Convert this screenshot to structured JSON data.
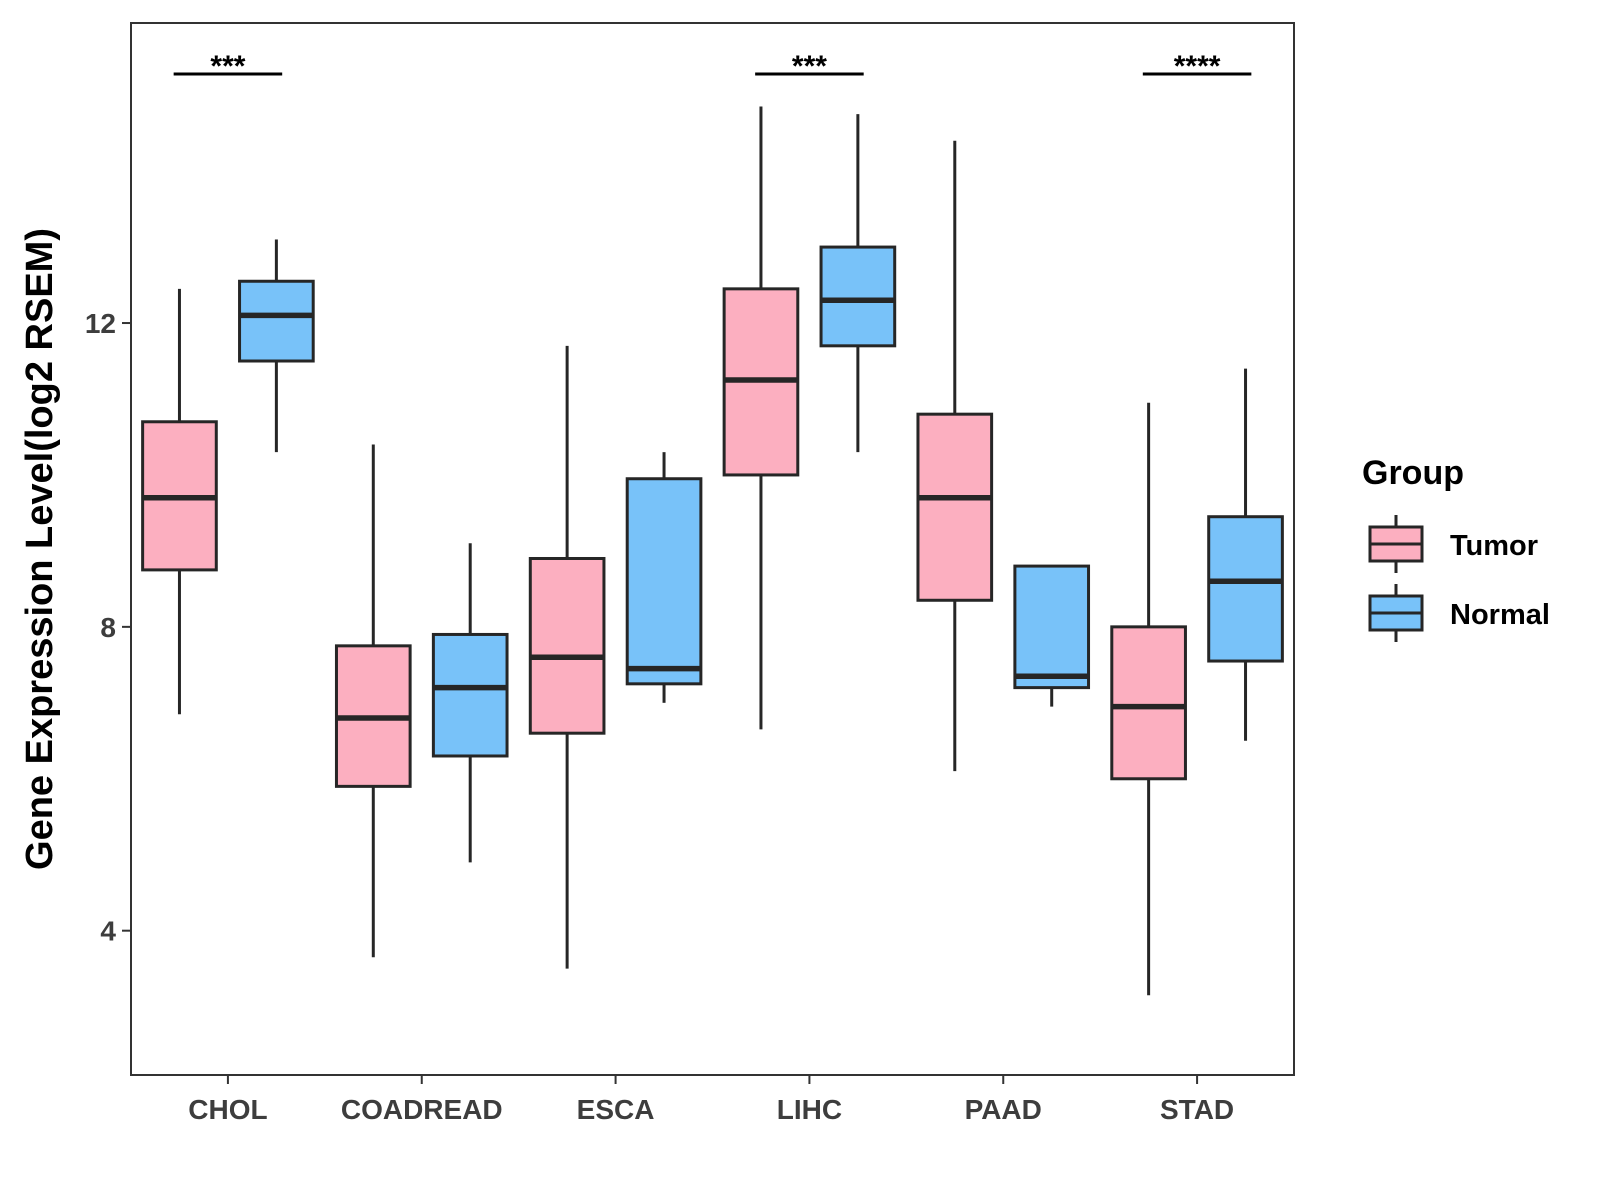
{
  "chart_data": {
    "type": "boxplot",
    "title": "",
    "xlabel": "",
    "ylabel": "Gene Expression Level(log2 RSEM)",
    "ylim": [
      2.1,
      15.95
    ],
    "yticks": [
      4,
      8,
      12
    ],
    "yticks_labels": [
      "4",
      "8",
      "12"
    ],
    "grid": false,
    "categories": [
      "CHOL",
      "COADREAD",
      "ESCA",
      "LIHC",
      "PAAD",
      "STAD"
    ],
    "series": [
      {
        "name": "Tumor",
        "color": "#fcafc0",
        "boxes": [
          {
            "category": "CHOL",
            "min": 6.85,
            "q1": 8.75,
            "median": 9.7,
            "q3": 10.7,
            "max": 12.45
          },
          {
            "category": "COADREAD",
            "min": 3.65,
            "q1": 5.9,
            "median": 6.8,
            "q3": 7.75,
            "max": 10.4
          },
          {
            "category": "ESCA",
            "min": 3.5,
            "q1": 6.6,
            "median": 7.6,
            "q3": 8.9,
            "max": 11.7
          },
          {
            "category": "LIHC",
            "min": 6.65,
            "q1": 10.0,
            "median": 11.25,
            "q3": 12.45,
            "max": 14.85
          },
          {
            "category": "PAAD",
            "min": 6.1,
            "q1": 8.35,
            "median": 9.7,
            "q3": 10.8,
            "max": 14.4
          },
          {
            "category": "STAD",
            "min": 3.15,
            "q1": 6.0,
            "median": 6.95,
            "q3": 8.0,
            "max": 10.95
          }
        ]
      },
      {
        "name": "Normal",
        "color": "#78c2f9",
        "boxes": [
          {
            "category": "CHOL",
            "min": 10.3,
            "q1": 11.5,
            "median": 12.1,
            "q3": 12.55,
            "max": 13.1
          },
          {
            "category": "COADREAD",
            "min": 4.9,
            "q1": 6.3,
            "median": 7.2,
            "q3": 7.9,
            "max": 9.1
          },
          {
            "category": "ESCA",
            "min": 7.0,
            "q1": 7.25,
            "median": 7.45,
            "q3": 9.95,
            "max": 10.3
          },
          {
            "category": "LIHC",
            "min": 10.3,
            "q1": 11.7,
            "median": 12.3,
            "q3": 13.0,
            "max": 14.75
          },
          {
            "category": "PAAD",
            "min": 6.95,
            "q1": 7.2,
            "median": 7.35,
            "q3": 8.8,
            "max": 8.8
          },
          {
            "category": "STAD",
            "min": 6.5,
            "q1": 7.55,
            "median": 8.6,
            "q3": 9.45,
            "max": 11.4
          }
        ]
      }
    ],
    "significance": [
      {
        "category": "CHOL",
        "label": "***"
      },
      {
        "category": "LIHC",
        "label": "***"
      },
      {
        "category": "STAD",
        "label": "****"
      }
    ],
    "legend": {
      "title": "Group",
      "position": "right",
      "entries": [
        "Tumor",
        "Normal"
      ]
    }
  }
}
